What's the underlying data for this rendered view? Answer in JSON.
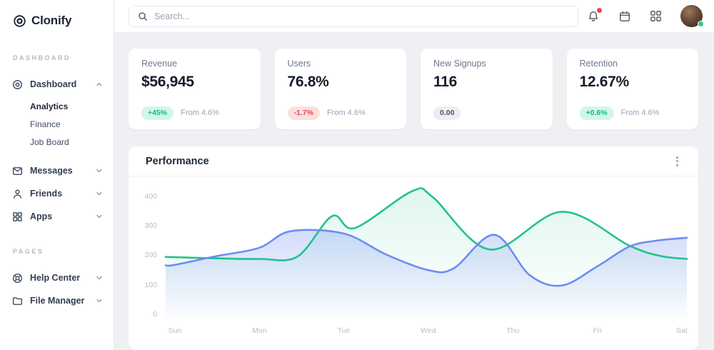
{
  "brand": {
    "name": "Clonify",
    "logo_icon": "target-icon"
  },
  "sidebar": {
    "sections": [
      {
        "label": "DASHBOARD",
        "items": [
          {
            "label": "Dashboard",
            "icon": "dashboard-icon",
            "expanded": true,
            "children": [
              {
                "label": "Analytics",
                "active": true
              },
              {
                "label": "Finance",
                "active": false
              },
              {
                "label": "Job Board",
                "active": false
              }
            ]
          },
          {
            "label": "Messages",
            "icon": "envelope-icon",
            "expanded": false
          },
          {
            "label": "Friends",
            "icon": "person-icon",
            "expanded": false
          },
          {
            "label": "Apps",
            "icon": "apps-grid-icon",
            "expanded": false
          }
        ]
      },
      {
        "label": "PAGES",
        "items": [
          {
            "label": "Help Center",
            "icon": "lifebuoy-icon",
            "expanded": false
          },
          {
            "label": "File Manager",
            "icon": "folder-icon",
            "expanded": false
          }
        ]
      }
    ]
  },
  "topbar": {
    "search_placeholder": "Search...",
    "icons": [
      "bell-icon",
      "calendar-icon",
      "apps-grid-icon",
      "user-avatar"
    ],
    "bell_has_notification": true,
    "avatar_status_color": "#2fc98c",
    "notification_dot_color": "#f0474d"
  },
  "stats": {
    "cards": [
      {
        "title": "Revenue",
        "value": "$56,945",
        "badge": "+45%",
        "tone": "positive",
        "note": "From 4.6%"
      },
      {
        "title": "Users",
        "value": "76.8%",
        "badge": "-1.7%",
        "tone": "negative",
        "note": "From 4.6%"
      },
      {
        "title": "New Signups",
        "value": "116",
        "badge": "0.00",
        "tone": "neutral",
        "note": ""
      },
      {
        "title": "Retention",
        "value": "12.67%",
        "badge": "+0.6%",
        "tone": "positive",
        "note": "From 4.6%"
      }
    ]
  },
  "chart_data": {
    "type": "area",
    "title": "Performance",
    "x_categories": [
      "Sun",
      "Mon",
      "Tue",
      "Wed",
      "Thu",
      "Fri",
      "Sat"
    ],
    "y_ticks": [
      0,
      100,
      200,
      300,
      400
    ],
    "ylim": [
      0,
      450
    ],
    "x_domain": [
      -0.11,
      6.06
    ],
    "grid": false,
    "legend": "none",
    "series": [
      {
        "name": "green-series",
        "color": "#23c28c",
        "fill_top": "rgba(35,194,140,0.14)",
        "fill_bottom": "rgba(35,194,140,0)",
        "points": [
          [
            -0.11,
            197
          ],
          [
            0,
            196
          ],
          [
            0.5,
            192
          ],
          [
            1,
            190
          ],
          [
            1.45,
            198
          ],
          [
            1.86,
            335
          ],
          [
            2.13,
            295
          ],
          [
            2.81,
            420
          ],
          [
            3.05,
            400
          ],
          [
            3.73,
            222
          ],
          [
            4.58,
            350
          ],
          [
            5.38,
            235
          ],
          [
            5.75,
            200
          ],
          [
            6.06,
            190
          ]
        ]
      },
      {
        "name": "blue-series",
        "color": "#6d8cf4",
        "fill_top": "rgba(109,140,244,0.30)",
        "fill_bottom": "rgba(109,140,244,0.02)",
        "points": [
          [
            -0.11,
            168
          ],
          [
            0,
            170
          ],
          [
            0.5,
            200
          ],
          [
            1,
            228
          ],
          [
            1.37,
            284
          ],
          [
            2,
            276
          ],
          [
            2.5,
            205
          ],
          [
            3,
            152
          ],
          [
            3.3,
            158
          ],
          [
            3.78,
            272
          ],
          [
            4.2,
            135
          ],
          [
            4.58,
            100
          ],
          [
            5,
            165
          ],
          [
            5.38,
            232
          ],
          [
            5.7,
            252
          ],
          [
            6.06,
            262
          ]
        ]
      }
    ]
  }
}
